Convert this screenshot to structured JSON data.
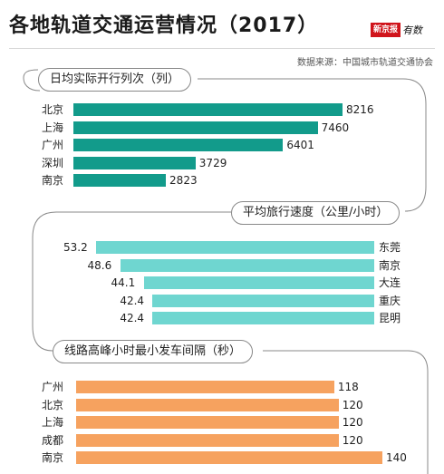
{
  "title": "各地轨道交通运营情况（2017）",
  "brand": {
    "name": "新京报",
    "tag": "有数"
  },
  "source": "数据来源：中国城市轨道交通协会",
  "colors": {
    "teal": "#129b8b",
    "cyan": "#6fd6d0",
    "orange": "#f6a25f"
  },
  "chart_data": [
    {
      "type": "bar",
      "title": "日均实际开行列次（列）",
      "categories": [
        "北京",
        "上海",
        "广州",
        "深圳",
        "南京"
      ],
      "values": [
        8216,
        7460,
        6401,
        3729,
        2823
      ]
    },
    {
      "type": "bar",
      "title": "平均旅行速度（公里/小时）",
      "categories": [
        "东莞",
        "南京",
        "大连",
        "重庆",
        "昆明"
      ],
      "values": [
        53.2,
        48.6,
        44.1,
        42.4,
        42.4
      ]
    },
    {
      "type": "bar",
      "title": "线路高峰小时最小发车间隔（秒）",
      "categories": [
        "广州",
        "北京",
        "上海",
        "成都",
        "南京"
      ],
      "values": [
        118,
        120,
        120,
        120,
        140
      ]
    }
  ]
}
